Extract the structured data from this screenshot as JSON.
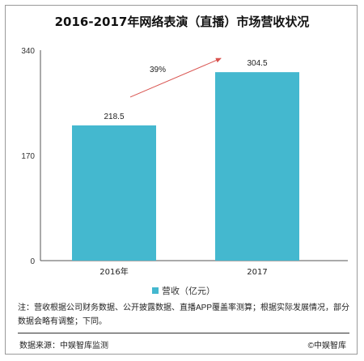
{
  "title": "2016-2017年网络表演（直播）市场营收状况",
  "chart_data": {
    "type": "bar",
    "categories": [
      "2016年",
      "2017"
    ],
    "series": [
      {
        "name": "营收（亿元）",
        "values": [
          218.5,
          304.5
        ],
        "color": "#44b8cf"
      }
    ],
    "ylim": [
      0,
      340
    ],
    "yticks": [
      0,
      170,
      340
    ],
    "data_labels": [
      "218.5",
      "304.5"
    ],
    "annotation": {
      "text": "39%",
      "color": "#d9534f"
    },
    "legend": "bottom-center",
    "grid": false
  },
  "legend_label": "营收（亿元）",
  "note": "注：营收根据公司财务数据、公开披露数据、直播APP覆盖率测算；根据实际发展情况，部分数据会略有调整；下同。",
  "footer": {
    "source": "数据来源：中娱智库监测",
    "copyright": "©中娱智库"
  }
}
